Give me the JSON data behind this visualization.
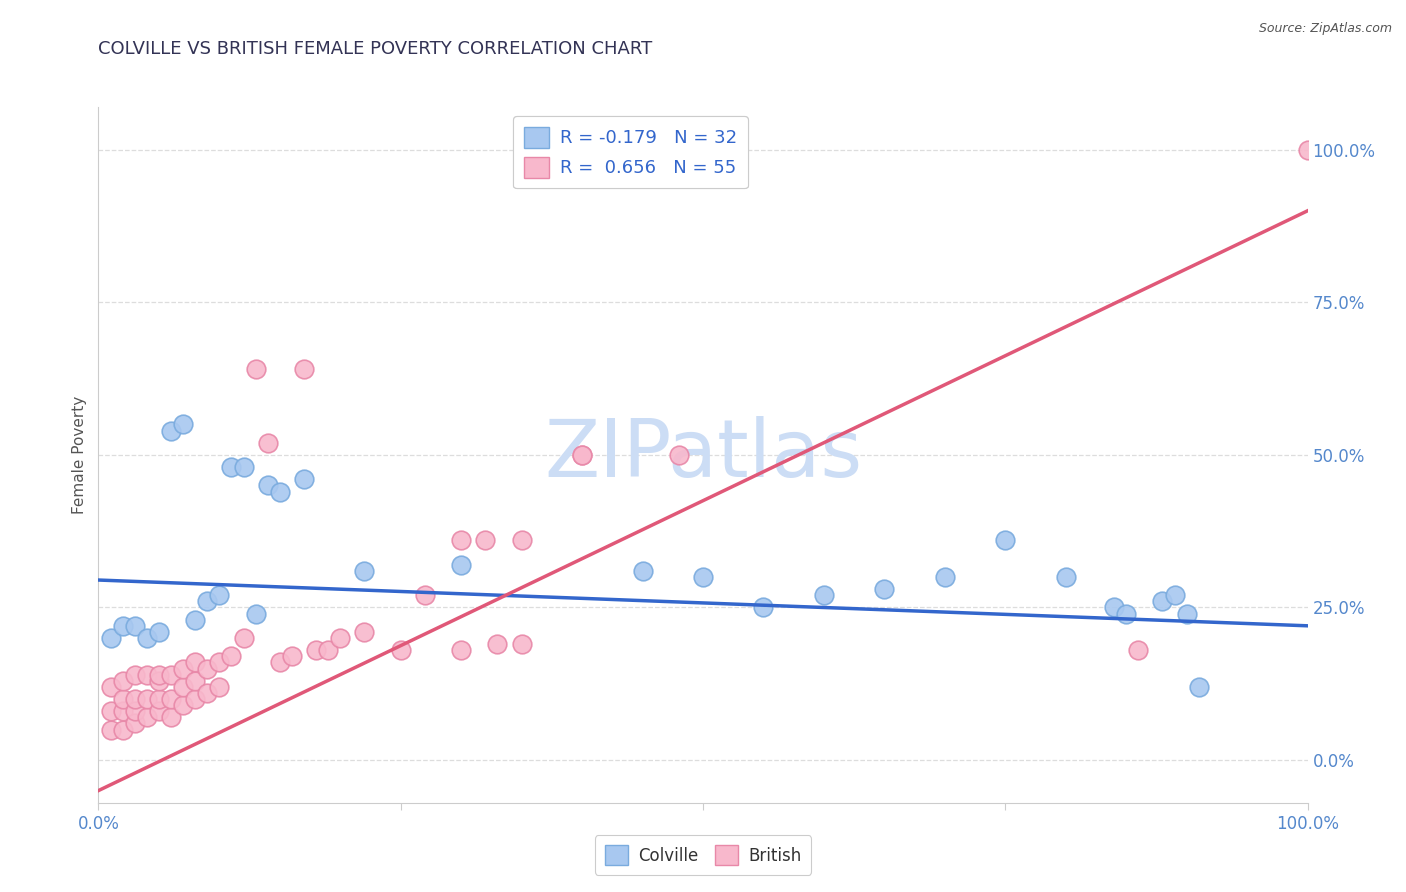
{
  "title": "COLVILLE VS BRITISH FEMALE POVERTY CORRELATION CHART",
  "source": "Source: ZipAtlas.com",
  "ylabel": "Female Poverty",
  "xlim": [
    0.0,
    1.0
  ],
  "ylim": [
    -0.07,
    1.07
  ],
  "ytick_values": [
    0.0,
    0.25,
    0.5,
    0.75,
    1.0
  ],
  "ytick_labels": [
    "0.0%",
    "25.0%",
    "50.0%",
    "75.0%",
    "100.0%"
  ],
  "colville_color": "#a8c8f0",
  "colville_edge": "#7aabde",
  "british_color": "#f8b8cc",
  "british_edge": "#e888a8",
  "regression_colville_color": "#3366cc",
  "regression_british_color": "#e05878",
  "regression_colville_intercept": 0.295,
  "regression_colville_slope": -0.075,
  "regression_british_intercept": -0.05,
  "regression_british_slope": 0.95,
  "watermark_text": "ZIPatlas",
  "watermark_color": "#ccddf5",
  "background_color": "#ffffff",
  "grid_color": "#dddddd",
  "title_color": "#333333",
  "axis_label_color": "#5588cc",
  "colville_points_x": [
    0.01,
    0.02,
    0.03,
    0.04,
    0.05,
    0.06,
    0.07,
    0.08,
    0.09,
    0.1,
    0.11,
    0.12,
    0.13,
    0.14,
    0.15,
    0.17,
    0.22,
    0.3,
    0.45,
    0.5,
    0.55,
    0.6,
    0.65,
    0.7,
    0.75,
    0.8,
    0.84,
    0.85,
    0.88,
    0.89,
    0.9,
    0.91
  ],
  "colville_points_y": [
    0.2,
    0.22,
    0.22,
    0.2,
    0.21,
    0.54,
    0.55,
    0.23,
    0.26,
    0.27,
    0.48,
    0.48,
    0.24,
    0.45,
    0.44,
    0.46,
    0.31,
    0.32,
    0.31,
    0.3,
    0.25,
    0.27,
    0.28,
    0.3,
    0.36,
    0.3,
    0.25,
    0.24,
    0.26,
    0.27,
    0.24,
    0.12
  ],
  "british_points_x": [
    0.01,
    0.01,
    0.01,
    0.02,
    0.02,
    0.02,
    0.02,
    0.03,
    0.03,
    0.03,
    0.03,
    0.04,
    0.04,
    0.04,
    0.05,
    0.05,
    0.05,
    0.05,
    0.06,
    0.06,
    0.06,
    0.07,
    0.07,
    0.07,
    0.08,
    0.08,
    0.08,
    0.09,
    0.09,
    0.1,
    0.1,
    0.11,
    0.12,
    0.13,
    0.14,
    0.15,
    0.16,
    0.17,
    0.18,
    0.19,
    0.2,
    0.22,
    0.25,
    0.27,
    0.3,
    0.3,
    0.32,
    0.33,
    0.35,
    0.35,
    0.4,
    0.4,
    0.48,
    0.86,
    1.0
  ],
  "british_points_y": [
    0.05,
    0.08,
    0.12,
    0.05,
    0.08,
    0.1,
    0.13,
    0.06,
    0.08,
    0.1,
    0.14,
    0.07,
    0.1,
    0.14,
    0.08,
    0.1,
    0.13,
    0.14,
    0.07,
    0.1,
    0.14,
    0.09,
    0.12,
    0.15,
    0.1,
    0.13,
    0.16,
    0.11,
    0.15,
    0.12,
    0.16,
    0.17,
    0.2,
    0.64,
    0.52,
    0.16,
    0.17,
    0.64,
    0.18,
    0.18,
    0.2,
    0.21,
    0.18,
    0.27,
    0.18,
    0.36,
    0.36,
    0.19,
    0.19,
    0.36,
    0.5,
    0.5,
    0.5,
    0.18,
    1.0
  ]
}
